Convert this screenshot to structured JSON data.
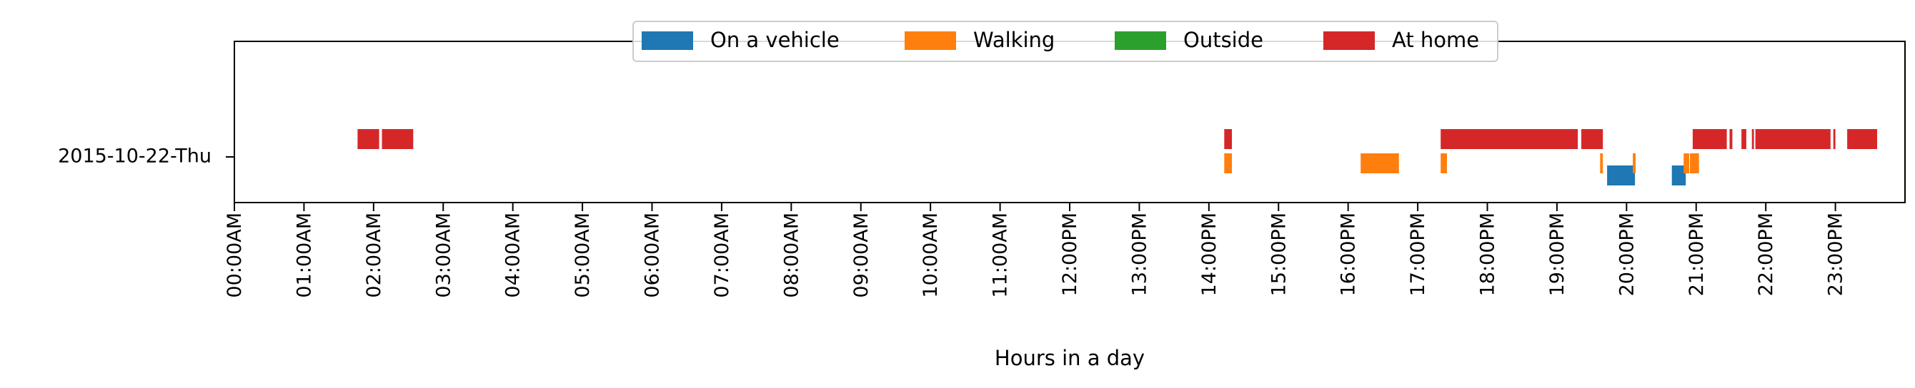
{
  "chart_data": {
    "type": "timeline",
    "xlabel": "Hours in a day",
    "ylabel": "",
    "xlim": [
      0,
      24
    ],
    "row_label": "2015-10-22-Thu",
    "x_ticks": [
      {
        "value": 0,
        "label": "00:00AM"
      },
      {
        "value": 1,
        "label": "01:00AM"
      },
      {
        "value": 2,
        "label": "02:00AM"
      },
      {
        "value": 3,
        "label": "03:00AM"
      },
      {
        "value": 4,
        "label": "04:00AM"
      },
      {
        "value": 5,
        "label": "05:00AM"
      },
      {
        "value": 6,
        "label": "06:00AM"
      },
      {
        "value": 7,
        "label": "07:00AM"
      },
      {
        "value": 8,
        "label": "08:00AM"
      },
      {
        "value": 9,
        "label": "09:00AM"
      },
      {
        "value": 10,
        "label": "10:00AM"
      },
      {
        "value": 11,
        "label": "11:00AM"
      },
      {
        "value": 12,
        "label": "12:00PM"
      },
      {
        "value": 13,
        "label": "13:00PM"
      },
      {
        "value": 14,
        "label": "14:00PM"
      },
      {
        "value": 15,
        "label": "15:00PM"
      },
      {
        "value": 16,
        "label": "16:00PM"
      },
      {
        "value": 17,
        "label": "17:00PM"
      },
      {
        "value": 18,
        "label": "18:00PM"
      },
      {
        "value": 19,
        "label": "19:00PM"
      },
      {
        "value": 20,
        "label": "20:00PM"
      },
      {
        "value": 21,
        "label": "21:00PM"
      },
      {
        "value": 22,
        "label": "22:00PM"
      },
      {
        "value": 23,
        "label": "23:00PM"
      }
    ],
    "legend_position": "top-center",
    "series": [
      {
        "name": "On a vehicle",
        "color": "#1f77b4",
        "lane": 3,
        "intervals": [
          [
            19.72,
            20.12
          ],
          [
            20.65,
            20.85
          ]
        ]
      },
      {
        "name": "Walking",
        "color": "#ff7f0e",
        "lane": 2,
        "intervals": [
          [
            14.22,
            14.33
          ],
          [
            16.18,
            16.73
          ],
          [
            17.33,
            17.42
          ],
          [
            19.62,
            19.66
          ],
          [
            20.09,
            20.13
          ],
          [
            20.82,
            20.9
          ],
          [
            20.91,
            21.04
          ]
        ]
      },
      {
        "name": "Outside",
        "color": "#2ca02c",
        "lane": 0,
        "intervals": []
      },
      {
        "name": "At home",
        "color": "#d62728",
        "lane": 1,
        "intervals": [
          [
            1.77,
            2.08
          ],
          [
            2.12,
            2.57
          ],
          [
            14.22,
            14.33
          ],
          [
            17.33,
            19.3
          ],
          [
            19.35,
            19.66
          ],
          [
            20.95,
            21.44
          ],
          [
            21.48,
            21.52
          ],
          [
            21.65,
            21.72
          ],
          [
            21.8,
            21.83
          ],
          [
            21.85,
            22.93
          ],
          [
            22.97,
            23.0
          ],
          [
            23.17,
            23.6
          ]
        ]
      }
    ]
  }
}
